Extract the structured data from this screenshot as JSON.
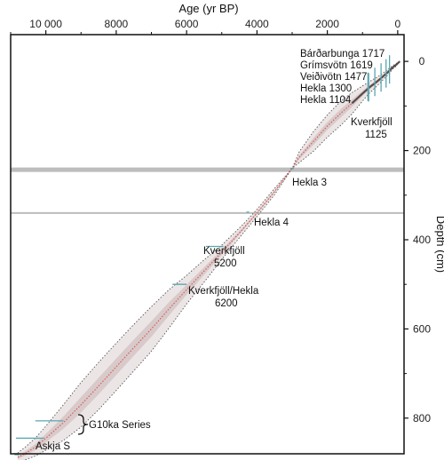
{
  "chart_data": {
    "type": "line",
    "title": "",
    "xlabel": "Age (yr BP)",
    "ylabel": "Depth (cm)",
    "xlim": [
      11000,
      -180
    ],
    "ylim": [
      -60,
      880
    ],
    "x_ticks": [
      10000,
      8000,
      6000,
      4000,
      2000,
      0
    ],
    "x_tick_labels": [
      "10 000",
      "8000",
      "6000",
      "4000",
      "2000",
      "0"
    ],
    "y_ticks": [
      0,
      200,
      400,
      600,
      800
    ],
    "y_tick_labels": [
      "0",
      "200",
      "400",
      "600",
      "800"
    ],
    "x_axis_position": "top",
    "y_axis_position": "right",
    "grid": false,
    "colors": {
      "median": "#d9534f",
      "band": "#c8b4b4",
      "bounds": "#555555",
      "tephra_marker": "#5aa6b0",
      "horizontal_bar": "#bdbdbd"
    },
    "series": [
      {
        "x": [
          -60,
          50,
          150,
          250,
          350,
          450,
          600,
          800,
          1000,
          1300,
          1600,
          2000,
          2400,
          2800,
          3000,
          3500,
          4000,
          4400,
          5000,
          5500,
          6000,
          6500,
          7000,
          7500,
          8000,
          8500,
          9000,
          9500,
          10000,
          10300,
          10600,
          10800
        ],
        "y": [
          0,
          8,
          14,
          22,
          29,
          36,
          46,
          58,
          72,
          94,
          115,
          145,
          180,
          215,
          240,
          292,
          340,
          376,
          428,
          470,
          512,
          555,
          600,
          642,
          685,
          728,
          770,
          810,
          845,
          865,
          880,
          888
        ]
      },
      {
        "x": [
          -60,
          50,
          150,
          250,
          350,
          450,
          600,
          800,
          1000,
          1300,
          1600,
          2000,
          2400,
          2800,
          3000,
          3500,
          4000,
          4400,
          5000,
          5500,
          6000,
          6500,
          7000,
          7500,
          8000,
          8500,
          9000,
          9500,
          10000,
          10300,
          10600,
          10800
        ],
        "y_lower": [
          0,
          5,
          10,
          16,
          22,
          28,
          36,
          45,
          55,
          70,
          88,
          120,
          158,
          203,
          240,
          285,
          332,
          366,
          412,
          445,
          480,
          512,
          550,
          590,
          632,
          675,
          720,
          770,
          818,
          845,
          866,
          878
        ],
        "y_upper": [
          0,
          11,
          18,
          28,
          36,
          44,
          56,
          71,
          89,
          118,
          142,
          170,
          202,
          227,
          240,
          299,
          348,
          386,
          444,
          495,
          544,
          598,
          650,
          694,
          738,
          781,
          820,
          850,
          872,
          885,
          894,
          898
        ]
      }
    ],
    "tephra_markers": [
      {
        "label": "Bárðarbunga 1717",
        "age": 233,
        "depth": 22,
        "err": 10
      },
      {
        "label": "Grímsvötn 1619",
        "age": 331,
        "depth": 31,
        "err": 12
      },
      {
        "label": "Veiðivötn 1477",
        "age": 473,
        "depth": 40,
        "err": 15
      },
      {
        "label": "Hekla 1300",
        "age": 650,
        "depth": 50,
        "err": 15
      },
      {
        "label": "Hekla 1104",
        "age": 846,
        "depth": 61,
        "err": 15
      },
      {
        "label": "Kverkfjöll 1125",
        "age": 825,
        "depth": 62,
        "err": 15
      },
      {
        "label": "Hekla 3",
        "age": 3000,
        "depth": 240,
        "err": 50
      },
      {
        "label": "Hekla 4",
        "age": 4260,
        "depth": 338,
        "err": 40
      },
      {
        "label": "Kverkfjöll 5200",
        "age": 5200,
        "depth": 415,
        "err": 250
      },
      {
        "label": "Kverkfjöll/Hekla 6200",
        "age": 6200,
        "depth": 500,
        "err": 200
      },
      {
        "label": "G10ka Series",
        "age": 9900,
        "depth": 806,
        "err": 400
      },
      {
        "label": "G10ka Series",
        "age": 10450,
        "depth": 845,
        "err": 400
      },
      {
        "label": "Askja S",
        "age": 10830,
        "depth": 882,
        "err": 60
      }
    ],
    "horizontal_bars": [
      {
        "depth": 243
      },
      {
        "depth": 340
      }
    ],
    "annotations": {
      "barda": "Bárðarbunga 1717",
      "grims": "Grímsvötn 1619",
      "veidi": "Veiðivötn 1477",
      "hekla1300": "Hekla 1300",
      "hekla1104": "Hekla 1104",
      "kverk1125_name": "Kverkfjöll",
      "kverk1125_year": "1125",
      "hekla3": "Hekla 3",
      "hekla4": "Hekla 4",
      "kverk5200_name": "Kverkfjöll",
      "kverk5200_year": "5200",
      "kh6200_name": "Kverkfjöll/Hekla",
      "kh6200_year": "6200",
      "g10ka": "G10ka Series",
      "askja": "Askja S"
    }
  }
}
